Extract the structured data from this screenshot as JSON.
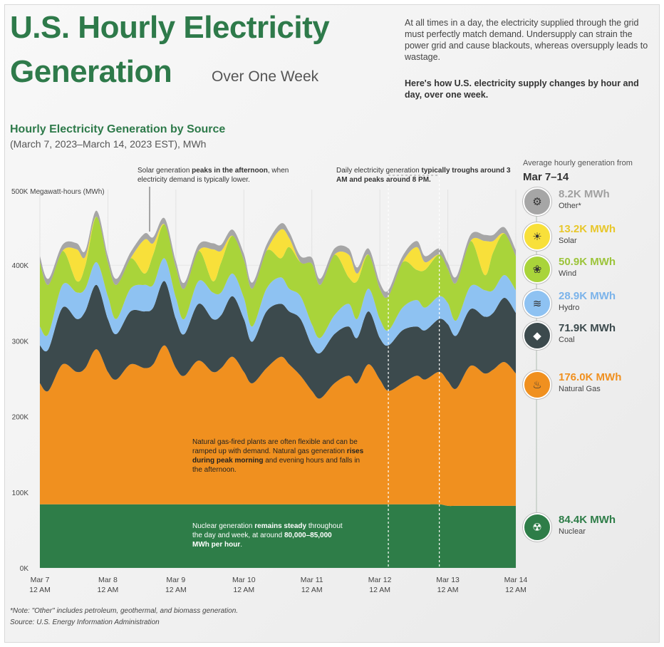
{
  "header": {
    "title_line1": "U.S. Hourly Electricity",
    "title_line2": "Generation",
    "title_sub": "Over One Week",
    "intro": "At all times in a day, the electricity supplied through the grid must perfectly match demand. Undersupply can strain the power grid and cause blackouts, whereas oversupply leads to wastage.",
    "intro_bold": "Here's how U.S. electricity supply changes by hour and day, over one week."
  },
  "annotations": {
    "solar_pre": "Solar generation ",
    "solar_bold": "peaks in the afternoon",
    "solar_post": ", when electricity demand is typically lower.",
    "daily_pre": "Daily electricity generation ",
    "daily_bold": "typically troughs around 3 AM and peaks around 8 PM.",
    "gas_pre": "Natural gas-fired plants are often flexible and can be ramped up with demand. Natural gas generation ",
    "gas_bold": "rises during peak morning",
    "gas_post": " and evening hours and falls in the afternoon.",
    "nuclear_pre": "Nuclear generation ",
    "nuclear_bold1": "remains steady",
    "nuclear_mid": " throughout the day and week, at around ",
    "nuclear_bold2": "80,000–85,000 MWh per hour",
    "nuclear_post": "."
  },
  "legend": {
    "heading": "Average hourly generation from",
    "range": "Mar 7–14",
    "items": [
      {
        "key": "other",
        "value": "8.2K MWh",
        "name": "Other*",
        "color": "#a6a6a6",
        "text_color": "#a0a0a0",
        "icon": "gear-icon"
      },
      {
        "key": "solar",
        "value": "13.2K MWh",
        "name": "Solar",
        "color": "#f8e03a",
        "text_color": "#e8c72a",
        "icon": "solar-panel-icon"
      },
      {
        "key": "wind",
        "value": "50.9K MWh",
        "name": "Wind",
        "color": "#a9d43a",
        "text_color": "#9cc43a",
        "icon": "wind-turbine-icon"
      },
      {
        "key": "hydro",
        "value": "28.9K MWh",
        "name": "Hydro",
        "color": "#8ec2f2",
        "text_color": "#7bb3ea",
        "icon": "water-icon"
      },
      {
        "key": "coal",
        "value": "71.9K MWh",
        "name": "Coal",
        "color": "#3c4a4d",
        "text_color": "#3c4a4d",
        "icon": "coal-icon"
      },
      {
        "key": "gas",
        "value": "176.0K MWh",
        "name": "Natural Gas",
        "color": "#f0901f",
        "text_color": "#f0901f",
        "icon": "flame-icon"
      },
      {
        "key": "nuclear",
        "value": "84.4K MWh",
        "name": "Nuclear",
        "color": "#2e7d48",
        "text_color": "#2e7d48",
        "icon": "nuclear-plant-icon"
      }
    ]
  },
  "footnote": "*Note: \"Other\" includes petroleum, geothermal, and biomass generation.",
  "source": "Source: U.S. Energy Information Administration",
  "chart_data": {
    "type": "area",
    "stacked": true,
    "title": "Hourly Electricity Generation by Source",
    "subtitle": "(March 7, 2023–March 14, 2023 EST), MWh",
    "ylabel": "500K Megawatt-hours (MWh)",
    "ylim": [
      0,
      500000
    ],
    "yticks": [
      0,
      100000,
      200000,
      300000,
      400000
    ],
    "ytick_labels": [
      "0K",
      "100K",
      "200K",
      "300K",
      "400K"
    ],
    "xlim": [
      0,
      168
    ],
    "xticks": [
      0,
      24,
      48,
      72,
      96,
      120,
      144,
      168
    ],
    "xtick_labels_top": [
      "Mar 7",
      "Mar 8",
      "Mar 9",
      "Mar 10",
      "Mar 11",
      "Mar 12",
      "Mar 13",
      "Mar 14"
    ],
    "xtick_labels_bottom": [
      "12 AM",
      "12 AM",
      "12 AM",
      "12 AM",
      "12 AM",
      "12 AM",
      "12 AM",
      "12 AM"
    ],
    "dashed_markers_hours": [
      123,
      141
    ],
    "x_hours": [
      0,
      3,
      8,
      13,
      16,
      20,
      24,
      27,
      32,
      37,
      40,
      44,
      48,
      51,
      56,
      61,
      64,
      68,
      72,
      75,
      80,
      85,
      88,
      92,
      96,
      99,
      104,
      109,
      112,
      116,
      120,
      123,
      128,
      133,
      136,
      141,
      144,
      147,
      152,
      157,
      160,
      164,
      168
    ],
    "series": [
      {
        "name": "Nuclear",
        "key": "nuclear",
        "color": "#2e7d48",
        "values": [
          84000,
          84000,
          84000,
          84000,
          84000,
          84000,
          84000,
          84000,
          84000,
          84000,
          84000,
          84000,
          84000,
          84000,
          84000,
          84000,
          84000,
          84000,
          84000,
          84000,
          84000,
          84000,
          84000,
          84000,
          84000,
          84000,
          84000,
          84000,
          84000,
          84000,
          84000,
          84000,
          84000,
          84000,
          84000,
          84000,
          82000,
          82000,
          82000,
          82000,
          82000,
          82000,
          82000
        ]
      },
      {
        "name": "Natural Gas",
        "key": "gas",
        "color": "#f0901f",
        "values": [
          160000,
          150000,
          185000,
          175000,
          180000,
          205000,
          175000,
          165000,
          185000,
          180000,
          185000,
          210000,
          180000,
          170000,
          190000,
          175000,
          180000,
          195000,
          175000,
          160000,
          180000,
          195000,
          185000,
          170000,
          150000,
          140000,
          160000,
          170000,
          160000,
          185000,
          165000,
          150000,
          160000,
          170000,
          165000,
          175000,
          165000,
          155000,
          185000,
          175000,
          180000,
          190000,
          175000
        ]
      },
      {
        "name": "Coal",
        "key": "coal",
        "color": "#3c4a4d",
        "values": [
          50000,
          55000,
          75000,
          70000,
          75000,
          85000,
          70000,
          60000,
          70000,
          75000,
          75000,
          85000,
          65000,
          55000,
          75000,
          70000,
          70000,
          80000,
          70000,
          55000,
          75000,
          70000,
          70000,
          75000,
          60000,
          60000,
          65000,
          65000,
          60000,
          70000,
          55000,
          60000,
          70000,
          65000,
          65000,
          70000,
          75000,
          70000,
          75000,
          75000,
          75000,
          85000,
          80000
        ]
      },
      {
        "name": "Hydro",
        "key": "hydro",
        "color": "#8ec2f2",
        "values": [
          25000,
          20000,
          30000,
          35000,
          30000,
          30000,
          30000,
          20000,
          30000,
          35000,
          30000,
          30000,
          28000,
          20000,
          30000,
          35000,
          30000,
          30000,
          28000,
          20000,
          30000,
          35000,
          30000,
          30000,
          28000,
          20000,
          25000,
          30000,
          25000,
          30000,
          25000,
          20000,
          30000,
          35000,
          30000,
          30000,
          28000,
          20000,
          30000,
          35000,
          30000,
          30000,
          30000
        ]
      },
      {
        "name": "Wind",
        "key": "wind",
        "color": "#a9d43a",
        "values": [
          85000,
          65000,
          45000,
          15000,
          30000,
          60000,
          45000,
          45000,
          40000,
          15000,
          40000,
          45000,
          40000,
          40000,
          40000,
          15000,
          40000,
          50000,
          50000,
          50000,
          50000,
          25000,
          55000,
          45000,
          80000,
          70000,
          80000,
          35000,
          50000,
          45000,
          40000,
          45000,
          60000,
          40000,
          50000,
          55000,
          45000,
          50000,
          60000,
          20000,
          50000,
          55000,
          45000
        ]
      },
      {
        "name": "Solar",
        "key": "solar",
        "color": "#f8e03a",
        "values": [
          0,
          0,
          0,
          42000,
          12000,
          0,
          0,
          0,
          0,
          45000,
          15000,
          0,
          0,
          0,
          0,
          42000,
          15000,
          0,
          0,
          0,
          0,
          38000,
          12000,
          0,
          0,
          0,
          0,
          30000,
          10000,
          0,
          0,
          0,
          0,
          30000,
          10000,
          0,
          0,
          0,
          0,
          45000,
          15000,
          0,
          0
        ]
      },
      {
        "name": "Other*",
        "key": "other",
        "color": "#a6a6a6",
        "values": [
          8000,
          8000,
          8000,
          8000,
          8000,
          8000,
          8000,
          8000,
          8000,
          8000,
          8000,
          8000,
          8000,
          8000,
          8000,
          8000,
          8000,
          8000,
          8000,
          8000,
          8000,
          8000,
          8000,
          8000,
          8000,
          8000,
          8000,
          8000,
          8000,
          8000,
          8000,
          8000,
          8000,
          8000,
          8000,
          8000,
          8000,
          8000,
          8000,
          8000,
          8000,
          8000,
          8000
        ]
      }
    ]
  }
}
